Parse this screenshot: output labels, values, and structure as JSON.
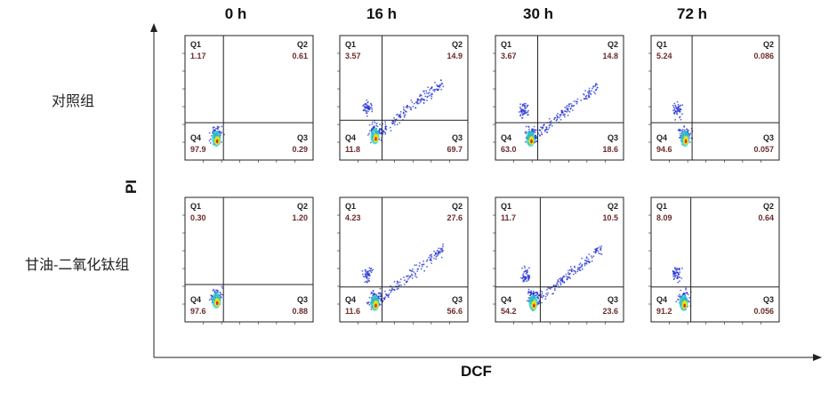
{
  "figure": {
    "x_axis_title": "DCF",
    "y_axis_title": "PI",
    "time_points": [
      "0 h",
      "16 h",
      "30 h",
      "72 h"
    ],
    "groups": [
      "对照组",
      "甘油-二氧化钛组"
    ]
  },
  "colors": {
    "frame": "#222222",
    "density_low": "#1f2fd6",
    "density_mid": "#2fd6c4",
    "density_high": "#f2e600",
    "density_peak": "#e52a1b",
    "value_text": "#6b2a2a"
  },
  "chart_data": {
    "type": "scatter",
    "kind": "flow cytometry quadrant density plots",
    "x_label": "DCF",
    "y_label": "PI",
    "columns": [
      "0 h",
      "16 h",
      "30 h",
      "72 h"
    ],
    "rows": [
      "对照组",
      "甘油-二氧化钛组"
    ],
    "quadrant_names": [
      "Q1",
      "Q2",
      "Q3",
      "Q4"
    ],
    "panels": [
      {
        "group": "对照组",
        "time": "0 h",
        "Q1": "1.17",
        "Q2": "0.61",
        "Q3": "0.29",
        "Q4": "97.9"
      },
      {
        "group": "对照组",
        "time": "16 h",
        "Q1": "3.57",
        "Q2": "14.9",
        "Q3": "69.7",
        "Q4": "11.8"
      },
      {
        "group": "对照组",
        "time": "30 h",
        "Q1": "3.67",
        "Q2": "14.8",
        "Q3": "18.6",
        "Q4": "63.0"
      },
      {
        "group": "对照组",
        "time": "72 h",
        "Q1": "5.24",
        "Q2": "0.086",
        "Q3": "0.057",
        "Q4": "94.6"
      },
      {
        "group": "甘油-二氧化钛组",
        "time": "0 h",
        "Q1": "0.30",
        "Q2": "1.20",
        "Q3": "0.88",
        "Q4": "97.6"
      },
      {
        "group": "甘油-二氧化钛组",
        "time": "16 h",
        "Q1": "4.23",
        "Q2": "27.6",
        "Q3": "56.6",
        "Q4": "11.6"
      },
      {
        "group": "甘油-二氧化钛组",
        "time": "30 h",
        "Q1": "11.7",
        "Q2": "10.5",
        "Q3": "23.6",
        "Q4": "54.2"
      },
      {
        "group": "甘油-二氧化钛组",
        "time": "72 h",
        "Q1": "8.09",
        "Q2": "0.64",
        "Q3": "0.056",
        "Q4": "91.2"
      }
    ]
  }
}
